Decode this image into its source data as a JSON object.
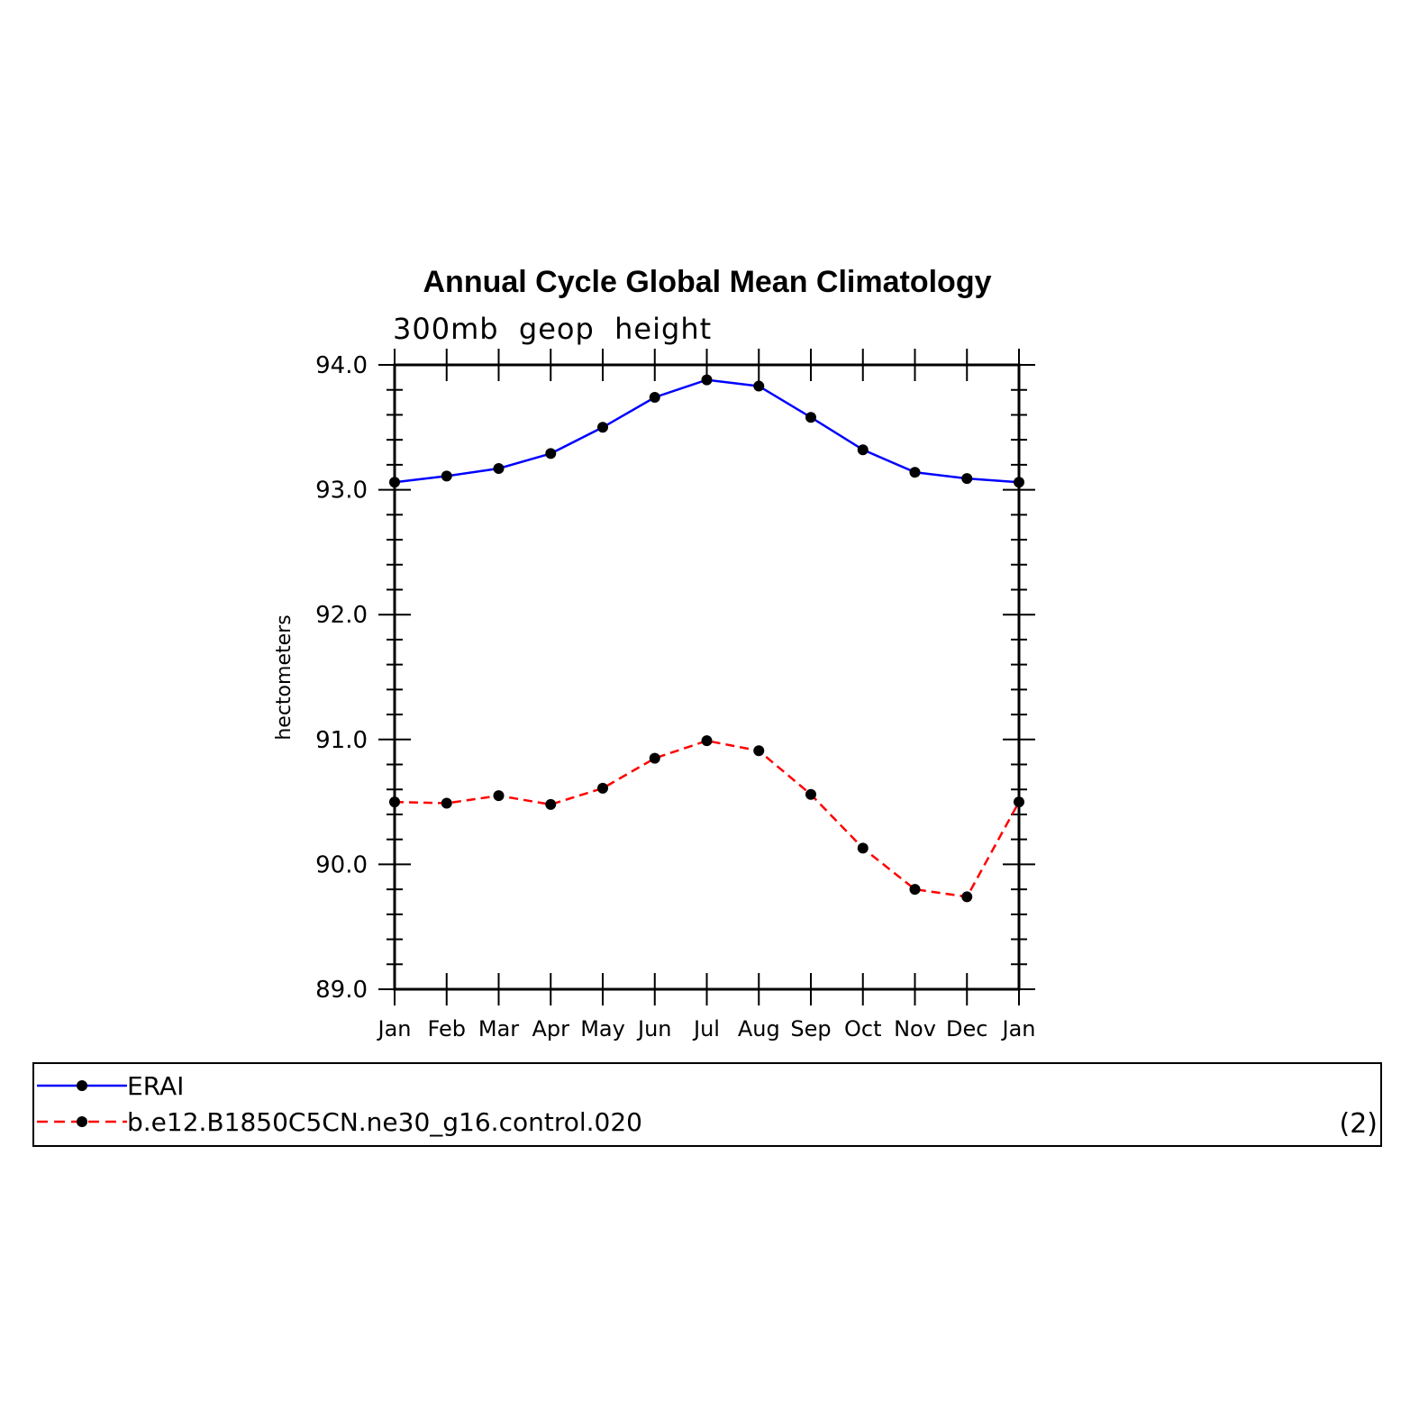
{
  "chart_data": {
    "type": "line",
    "title": "Annual Cycle Global Mean Climatology",
    "subtitle": "300mb  geop  height",
    "ylabel": "hectometers",
    "xlabel": "",
    "ylim": [
      89.0,
      94.0
    ],
    "yticks": [
      "89.0",
      "90.0",
      "91.0",
      "92.0",
      "93.0",
      "94.0"
    ],
    "categories": [
      "Jan",
      "Feb",
      "Mar",
      "Apr",
      "May",
      "Jun",
      "Jul",
      "Aug",
      "Sep",
      "Oct",
      "Nov",
      "Dec",
      "Jan"
    ],
    "series": [
      {
        "name": "ERAI",
        "color": "#0000ff",
        "dashed": false,
        "values": [
          93.06,
          93.11,
          93.17,
          93.29,
          93.5,
          93.74,
          93.88,
          93.83,
          93.58,
          93.32,
          93.14,
          93.09,
          93.06
        ]
      },
      {
        "name": "b.e12.B1850C5CN.ne30_g16.control.020",
        "color": "#ff0000",
        "dashed": true,
        "values": [
          90.5,
          90.49,
          90.55,
          90.48,
          90.61,
          90.85,
          90.99,
          90.91,
          90.56,
          90.13,
          89.8,
          89.74,
          90.5
        ]
      }
    ],
    "grid": false,
    "legend": "bottom"
  },
  "panel_label": "(2)"
}
